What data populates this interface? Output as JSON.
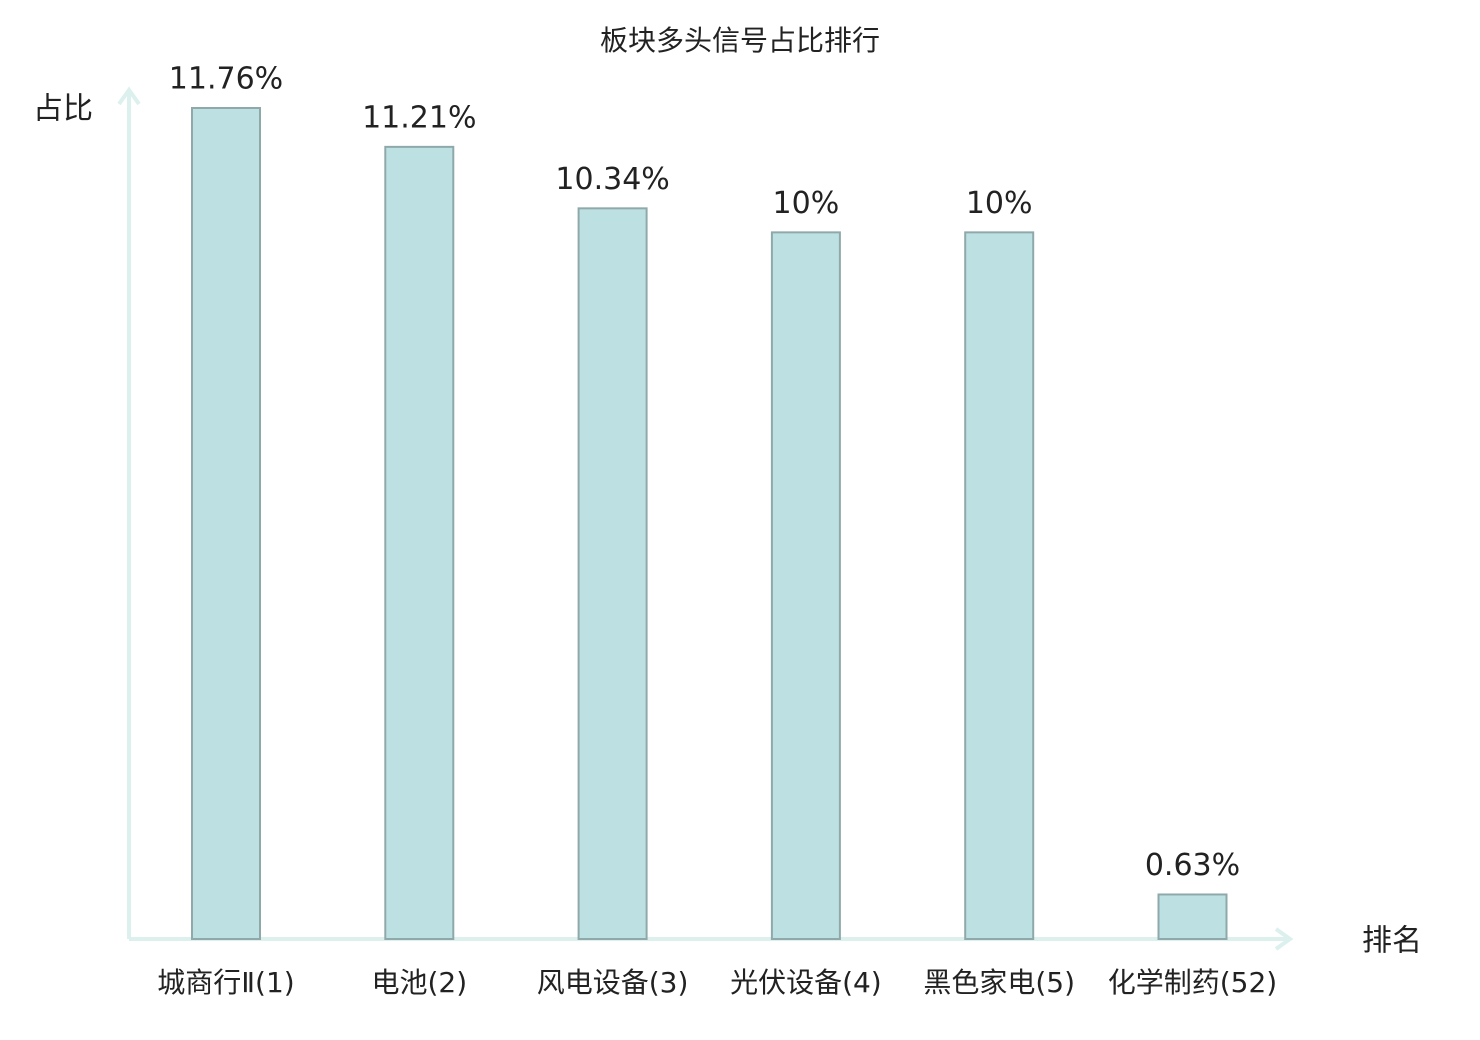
{
  "chart_data": {
    "type": "bar",
    "title": "板块多头信号占比排行",
    "y_label": "占比",
    "x_label": "排名",
    "categories": [
      "城商行Ⅱ(1)",
      "电池(2)",
      "风电设备(3)",
      "光伏设备(4)",
      "黑色家电(5)",
      "化学制药(52)"
    ],
    "category_colors": [
      "#222222",
      "#222222",
      "#222222",
      "#222222",
      "#222222",
      "#e02020"
    ],
    "values": [
      11.76,
      11.21,
      10.34,
      10,
      10,
      0.63
    ],
    "value_labels": [
      "11.76%",
      "11.21%",
      "10.34%",
      "10%",
      "10%",
      "0.63%"
    ],
    "color": "#bde0e2",
    "edge_color": "#8fa9aa",
    "axis_color": "#dcf0ee"
  }
}
